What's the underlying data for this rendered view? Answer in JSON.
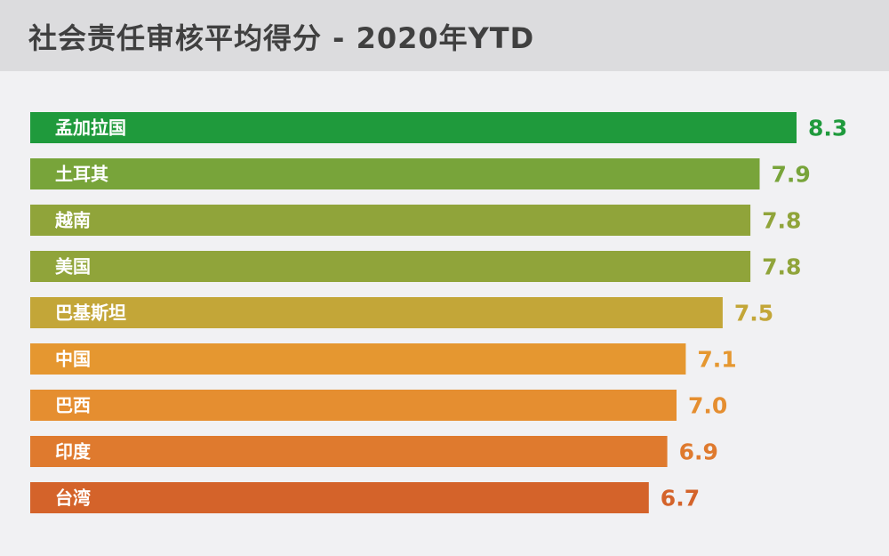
{
  "header": {
    "title": "社会责任审核平均得分 - 2020年YTD"
  },
  "chart_data": {
    "type": "bar",
    "orientation": "horizontal",
    "title": "社会责任审核平均得分 - 2020年YTD",
    "categories": [
      "孟加拉国",
      "土耳其",
      "越南",
      "美国",
      "巴基斯坦",
      "中国",
      "巴西",
      "印度",
      "台湾"
    ],
    "values": [
      8.3,
      7.9,
      7.8,
      7.8,
      7.5,
      7.1,
      7.0,
      6.9,
      6.7
    ],
    "value_labels": [
      "8.3",
      "7.9",
      "7.8",
      "7.8",
      "7.5",
      "7.1",
      "7.0",
      "6.9",
      "6.7"
    ],
    "colors": [
      "#1f9a3c",
      "#78a43a",
      "#90a43a",
      "#90a43a",
      "#c3a638",
      "#e59730",
      "#e58e30",
      "#df7a2e",
      "#d4632a"
    ],
    "xlim": [
      0,
      8.3
    ],
    "grid": false,
    "legend": "none"
  }
}
